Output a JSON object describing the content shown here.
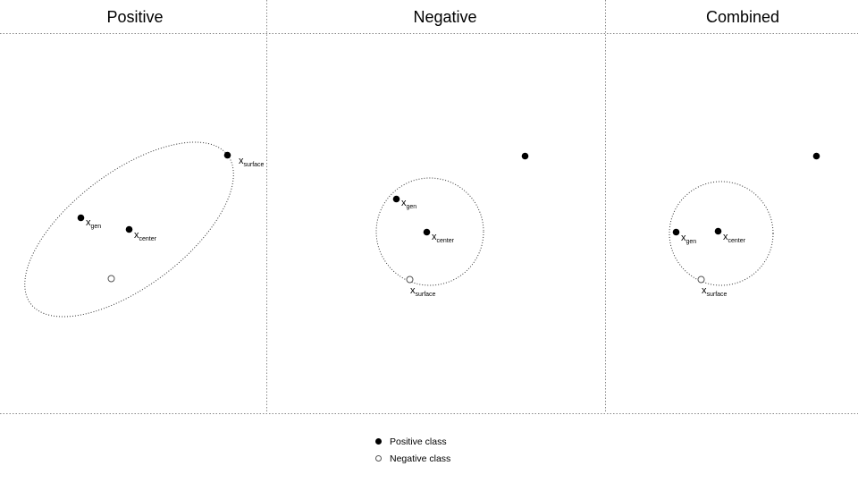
{
  "panels": [
    {
      "title": "Positive",
      "labels": {
        "gen_main": "x",
        "gen_sub": "gen",
        "center_main": "x",
        "center_sub": "center",
        "surface_main": "x",
        "surface_sub": "surface"
      }
    },
    {
      "title": "Negative",
      "labels": {
        "gen_main": "x",
        "gen_sub": "gen",
        "center_main": "x",
        "center_sub": "center",
        "surface_main": "x",
        "surface_sub": "surface"
      }
    },
    {
      "title": "Combined",
      "labels": {
        "gen_main": "x",
        "gen_sub": "gen",
        "center_main": "x",
        "center_sub": "center",
        "surface_main": "x",
        "surface_sub": "surface"
      }
    }
  ],
  "legend": [
    {
      "label": "Positive class",
      "marker": "filled-circle"
    },
    {
      "label": "Negative class",
      "marker": "hollow-circle"
    }
  ],
  "colors": {
    "positive": "#000000",
    "negative": "#ffffff",
    "outline": "#555555",
    "grid": "#888888"
  }
}
